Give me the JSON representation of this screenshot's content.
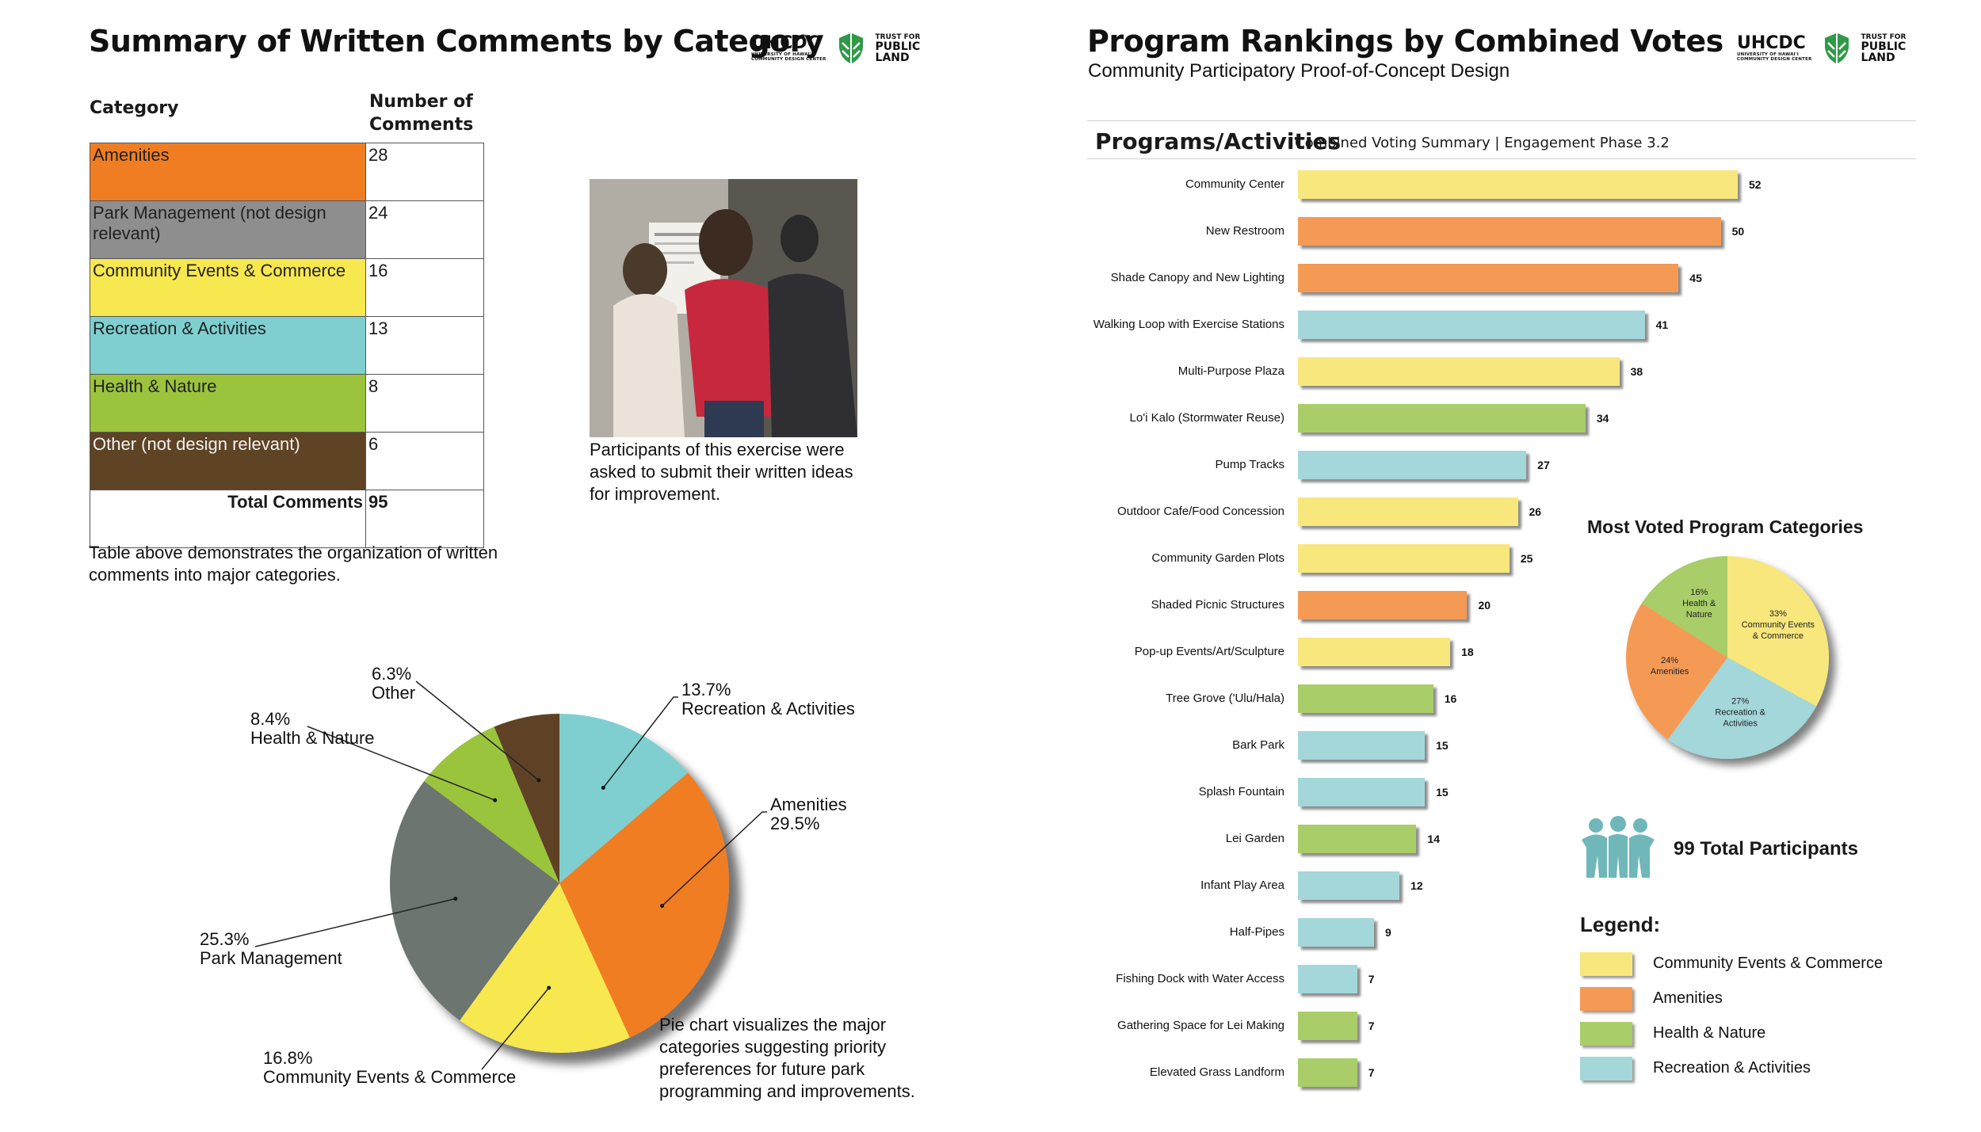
{
  "left": {
    "title": "Summary of Written Comments by Category",
    "logos": {
      "uh_main": "UHCDC",
      "uh_sub1": "UNIVERSITY OF HAWAI'I",
      "uh_sub2": "COMMUNITY DESIGN CENTER",
      "tpl_for": "TRUST FOR",
      "tpl_public": "PUBLIC",
      "tpl_land": "LAND"
    },
    "table": {
      "header_category": "Category",
      "header_count_1": "Number of",
      "header_count_2": "Comments",
      "rows": [
        {
          "label": "Amenities",
          "count": "28",
          "color": "#f07d22"
        },
        {
          "label": "Park Management (not design relevant)",
          "count": "24",
          "color": "#8e8e8e"
        },
        {
          "label": "Community Events & Commerce",
          "count": "16",
          "color": "#f8e84f"
        },
        {
          "label": "Recreation & Activities",
          "count": "13",
          "color": "#7fcfd0"
        },
        {
          "label": "Health & Nature",
          "count": "8",
          "color": "#9bc43c"
        },
        {
          "label": "Other (not design relevant)",
          "count": "6",
          "color": "#5e4325"
        }
      ],
      "total_label": "Total Comments",
      "total_value": "95"
    },
    "table_caption": "Table above demonstrates the organization of written comments into major categories.",
    "photo_caption": "Participants of this exercise were asked to submit their written ideas for improvement.",
    "pie_caption": "Pie chart visualizes the major categories suggesting priority preferences for future park programming and improvements."
  },
  "right": {
    "title": "Program Rankings by Combined Votes",
    "subtitle": "Community Participatory Proof-of-Concept Design",
    "section_title": "Programs/Activities",
    "section_subtitle": "Combined Voting Summary | Engagement Phase 3.2",
    "pie_title": "Most Voted Program Categories",
    "participants": "99 Total Participants",
    "legend_title": "Legend:",
    "legend": [
      {
        "label": "Community Events & Commerce",
        "color": "#f8e77c"
      },
      {
        "label": "Amenities",
        "color": "#f59a55"
      },
      {
        "label": "Health & Nature",
        "color": "#a9cd68"
      },
      {
        "label": "Recreation & Activities",
        "color": "#a3d7da"
      }
    ]
  },
  "chart_data": [
    {
      "type": "pie",
      "title": "",
      "slices": [
        {
          "label": "Recreation & Activities",
          "value": 13.7,
          "display": "13.7%",
          "color": "#7fcfd0"
        },
        {
          "label": "Amenities",
          "value": 29.5,
          "display": "29.5%",
          "color": "#f07d22"
        },
        {
          "label": "Community Events & Commerce",
          "value": 16.8,
          "display": "16.8%",
          "color": "#f8e84f"
        },
        {
          "label": "Park Management",
          "value": 25.3,
          "display": "25.3%",
          "color": "#6c7570"
        },
        {
          "label": "Health & Nature",
          "value": 8.4,
          "display": "8.4%",
          "color": "#9bc43c"
        },
        {
          "label": "Other",
          "value": 6.3,
          "display": "6.3%",
          "color": "#5e4325"
        }
      ]
    },
    {
      "type": "bar",
      "title": "Programs/Activities",
      "orientation": "horizontal",
      "xlim": [
        0,
        57
      ],
      "categories": [
        "Community Center",
        "New Restroom",
        "Shade Canopy and New Lighting",
        "Walking Loop with Exercise Stations",
        "Multi-Purpose Plaza",
        "Lo'i Kalo (Stormwater Reuse)",
        "Pump Tracks",
        "Outdoor Cafe/Food Concession",
        "Community Garden Plots",
        "Shaded Picnic Structures",
        "Pop-up Events/Art/Sculpture",
        "Tree Grove ('Ulu/Hala)",
        "Bark Park",
        "Splash Fountain",
        "Lei Garden",
        "Infant Play Area",
        "Half-Pipes",
        "Fishing Dock with Water Access",
        "Gathering Space for Lei Making",
        "Elevated Grass Landform"
      ],
      "values": [
        52,
        50,
        45,
        41,
        38,
        34,
        27,
        26,
        25,
        20,
        18,
        16,
        15,
        15,
        14,
        12,
        9,
        7,
        7,
        7
      ],
      "groups": [
        "Community Events & Commerce",
        "Amenities",
        "Amenities",
        "Recreation & Activities",
        "Community Events & Commerce",
        "Health & Nature",
        "Recreation & Activities",
        "Community Events & Commerce",
        "Community Events & Commerce",
        "Amenities",
        "Community Events & Commerce",
        "Health & Nature",
        "Recreation & Activities",
        "Recreation & Activities",
        "Health & Nature",
        "Recreation & Activities",
        "Recreation & Activities",
        "Recreation & Activities",
        "Health & Nature",
        "Health & Nature"
      ]
    },
    {
      "type": "pie",
      "title": "Most Voted Program Categories",
      "slices": [
        {
          "label": "Community Events & Commerce",
          "value": 33,
          "display": "33%",
          "color": "#f8e77c"
        },
        {
          "label": "Recreation & Activities",
          "value": 27,
          "display": "27%",
          "color": "#a3d7da"
        },
        {
          "label": "Amenities",
          "value": 24,
          "display": "24%",
          "color": "#f59a55"
        },
        {
          "label": "Health & Nature",
          "value": 16,
          "display": "16%",
          "color": "#a9cd68"
        }
      ]
    }
  ]
}
